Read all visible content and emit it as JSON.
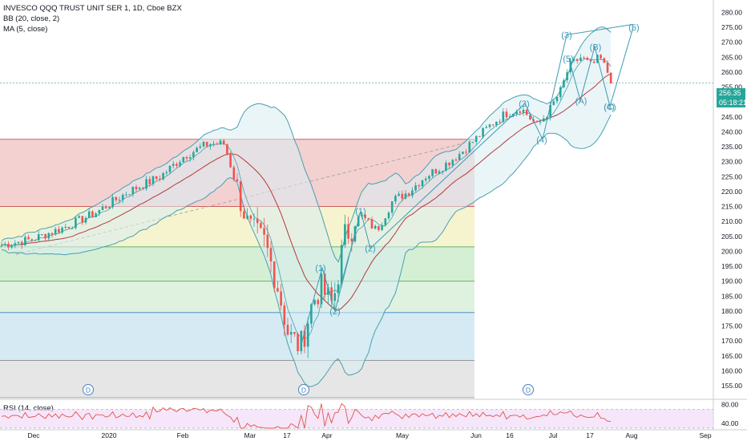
{
  "legend": {
    "symbol": "INVESCO QQQ TRUST UNIT SER 1, 1D, Cboe BZX",
    "bb": "BB (20, close, 2)",
    "ma": "MA (5, close)"
  },
  "rsi_label": "RSI (14, close)",
  "price_tag": "256.35",
  "countdown_tag": "05:18:21",
  "colors": {
    "up": "#26a69a",
    "down": "#ef5350",
    "bb": "#4a9fb0",
    "bb_fill": "#d8edf2",
    "ma": "#b33a3a",
    "wave": "#3c9ab4",
    "fib_top": "#f1c9c9",
    "fib_2": "#f4f2c7",
    "fib_3": "#cdeccd",
    "fib_4": "#d9f0da",
    "fib_5": "#cfe6f2",
    "fib_6": "#e2e2e2",
    "rsi": "#e0544b",
    "rsi_band": "#f0d6f6"
  },
  "chart_data": {
    "type": "candlestick",
    "y_axis": {
      "ylim": [
        151,
        282
      ],
      "ticks": [
        155,
        160,
        165,
        170,
        175,
        180,
        185,
        190,
        195,
        200,
        205,
        210,
        215,
        220,
        225,
        230,
        235,
        240,
        245,
        250,
        255,
        260,
        265,
        270,
        275,
        280
      ]
    },
    "x_axis": {
      "tick_labels": [
        "Dec",
        "2020",
        "Feb",
        "Mar",
        "17",
        "Apr",
        "May",
        "Jun",
        "16",
        "Jul",
        "17",
        "Aug",
        "Sep"
      ]
    },
    "fib_levels": [
      237.5,
      215.0,
      201.5,
      190.0,
      179.5,
      163.5,
      151.0
    ],
    "close_line": 256.35,
    "wave_labels": [
      {
        "label": "(1)",
        "value": 194.5
      },
      {
        "label": "(2)",
        "value": 180.0
      },
      {
        "label": "(1)",
        "value": 213.5
      },
      {
        "label": "(2)",
        "value": 201.0
      },
      {
        "label": "(3)",
        "value": 249.5
      },
      {
        "label": "(4)",
        "value": 237.5
      },
      {
        "label": "(3)",
        "value": 272.5
      },
      {
        "label": "(5)",
        "value": 264.5
      },
      {
        "label": "(A)",
        "value": 250.5
      },
      {
        "label": "(B)",
        "value": 268.5
      },
      {
        "label": "(4)",
        "value": 248.5
      },
      {
        "label": "(C)",
        "value": 248.5
      },
      {
        "label": "(5)",
        "value": 275.0
      }
    ],
    "dividend_markers": [
      "D",
      "D",
      "D"
    ],
    "rsi": {
      "ylim": [
        30,
        88
      ],
      "ticks": [
        40,
        80
      ],
      "band": [
        30,
        70
      ]
    }
  }
}
